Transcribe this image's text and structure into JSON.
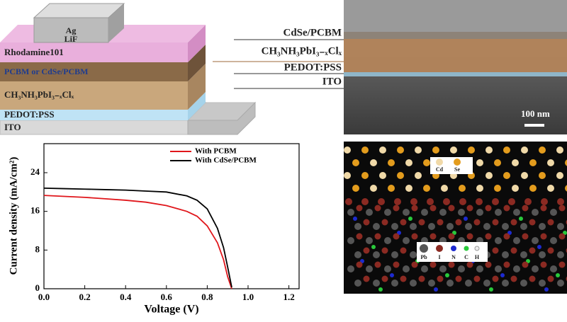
{
  "schematic": {
    "layers": [
      "Ag",
      "LiF",
      "Rhodamine101",
      "PCBM or CdSe/PCBM",
      "CH₃NH₃PbI₃₋ₓClₓ",
      "PEDOT:PSS",
      "ITO"
    ]
  },
  "sem": {
    "labels": [
      "CdSe/PCBM",
      "CH₃NH₃PbI₃₋ₓClₓ",
      "PEDOT:PSS",
      "ITO"
    ],
    "scale_bar": "100 nm"
  },
  "chart_data": {
    "type": "line",
    "x_label": "Voltage (V)",
    "y_label": "Current density (mA/cm²)",
    "x": [
      0,
      0.1,
      0.2,
      0.3,
      0.4,
      0.5,
      0.6,
      0.7,
      0.75,
      0.8,
      0.85,
      0.88,
      0.9,
      0.92
    ],
    "series": [
      {
        "name": "With PCBM",
        "color": "#e0161b",
        "values": [
          19.3,
          19.1,
          18.9,
          18.6,
          18.3,
          17.9,
          17.2,
          16.0,
          15.0,
          13.0,
          9.5,
          6.0,
          2.5,
          0
        ]
      },
      {
        "name": "With CdSe/PCBM",
        "color": "#000000",
        "values": [
          20.8,
          20.7,
          20.6,
          20.5,
          20.4,
          20.2,
          20.0,
          19.2,
          18.3,
          16.5,
          12.5,
          8.5,
          4.5,
          0.3
        ]
      }
    ],
    "xlim": [
      0,
      1.25
    ],
    "ylim": [
      0,
      30
    ],
    "xticks": [
      {
        "value": 0,
        "label": "0.0"
      },
      0.2,
      0.4,
      0.6,
      0.8,
      {
        "value": 1,
        "label": "1.0"
      },
      1.2
    ],
    "yticks": [
      0,
      8,
      16,
      24
    ],
    "legend": "upper right"
  },
  "structure": {
    "legend_top": [
      "Cd",
      "Se"
    ],
    "legend_bottom": [
      "Pb",
      "I",
      "N",
      "C",
      "H"
    ]
  }
}
